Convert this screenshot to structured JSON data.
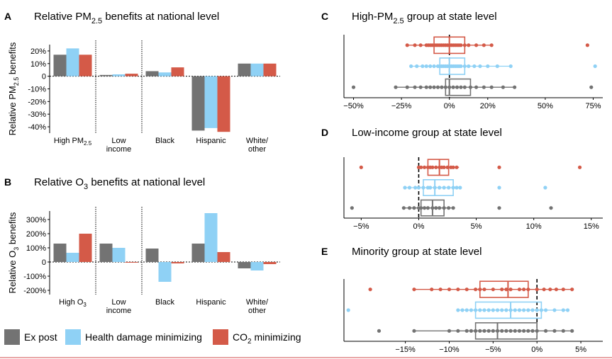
{
  "colors": {
    "ex_post": "#737373",
    "health": "#8fd1f5",
    "co2": "#d45a48"
  },
  "legend": [
    {
      "key": "ex_post",
      "label": "Ex post"
    },
    {
      "key": "health",
      "label": "Health damage minimizing"
    },
    {
      "key": "co2",
      "label": "CO2 minimizing",
      "sub": "2",
      "prefix": "CO",
      "suffix": " minimizing"
    }
  ],
  "chart_data": [
    {
      "id": "A",
      "panel_letter": "A",
      "type": "bar",
      "title": "Relative PM2.5 benefits at national level",
      "title_parts": {
        "pre": "Relative PM",
        "sub": "2.5",
        "post": " benefits at national level"
      },
      "ylabel": "Relative PM2.5 benefits",
      "ylabel_parts": {
        "pre": "Relative PM",
        "sub": "2.5",
        "post": " benefits"
      },
      "ylim": [
        -45,
        25
      ],
      "yticks": [
        20,
        10,
        0,
        -10,
        -20,
        -30,
        -40
      ],
      "ytick_labels": [
        "20%",
        "10%",
        "0",
        "-10%",
        "-20%",
        "-30%",
        "-40%"
      ],
      "categories": [
        "High PM2.5",
        "Low income",
        "Black",
        "Hispanic",
        "White/ other"
      ],
      "category_labels": [
        [
          "High PM2.5"
        ],
        [
          "Low",
          "income"
        ],
        [
          "Black"
        ],
        [
          "Hispanic"
        ],
        [
          "White/",
          "other"
        ]
      ],
      "series": [
        {
          "key": "ex_post",
          "values": [
            17,
            1,
            4,
            -43,
            10
          ]
        },
        {
          "key": "health",
          "values": [
            22,
            1.5,
            3,
            -41,
            10
          ]
        },
        {
          "key": "co2",
          "values": [
            17,
            2,
            7,
            -44,
            10
          ]
        }
      ],
      "separators_after": [
        0,
        1
      ],
      "zero_line": "dotted"
    },
    {
      "id": "B",
      "panel_letter": "B",
      "type": "bar",
      "title": "Relative O3 benefits at national level",
      "title_parts": {
        "pre": "Relative O",
        "sub": "3",
        "post": " benefits at national level"
      },
      "ylabel": "Relative O3 benefits",
      "ylabel_parts": {
        "pre": "Relative O",
        "sub": "3",
        "post": " benefits"
      },
      "ylim": [
        -230,
        360
      ],
      "yticks": [
        300,
        200,
        100,
        0,
        -100,
        -200
      ],
      "ytick_labels": [
        "300%",
        "200%",
        "100%",
        "0",
        "-100%",
        "-200%"
      ],
      "categories": [
        "High O3",
        "Low income",
        "Black",
        "Hispanic",
        "White/ other"
      ],
      "category_labels": [
        [
          "High O3"
        ],
        [
          "Low",
          "income"
        ],
        [
          "Black"
        ],
        [
          "Hispanic"
        ],
        [
          "White/",
          "other"
        ]
      ],
      "series": [
        {
          "key": "ex_post",
          "values": [
            130,
            130,
            95,
            130,
            -45
          ]
        },
        {
          "key": "health",
          "values": [
            65,
            100,
            -140,
            345,
            -60
          ]
        },
        {
          "key": "co2",
          "values": [
            200,
            -5,
            -10,
            70,
            -15
          ]
        }
      ],
      "separators_after": [
        0,
        1
      ],
      "zero_line": "dotted"
    },
    {
      "id": "C",
      "panel_letter": "C",
      "type": "scatter",
      "title": "High-PM2.5 group at state level",
      "title_parts": {
        "pre": "High-PM",
        "sub": "2.5",
        "post": " group at state level"
      },
      "xlim": [
        -55,
        80
      ],
      "xticks": [
        -50,
        -25,
        0,
        20,
        50,
        75
      ],
      "xtick_labels": [
        "−50%",
        "−25%",
        "0%",
        "20%",
        "50%",
        "75%"
      ],
      "series": [
        {
          "key": "co2",
          "box": {
            "q1": -8,
            "median": 0,
            "q3": 8,
            "wlo": -22,
            "whi": 22
          },
          "points": [
            -22,
            -18,
            -15,
            -12,
            -11,
            -10,
            -9,
            -8,
            -7,
            -6,
            -5,
            -4,
            -3,
            -2,
            -1,
            0,
            1,
            2,
            3,
            4,
            5,
            6,
            8,
            10,
            14,
            18,
            22,
            72
          ]
        },
        {
          "key": "health",
          "box": {
            "q1": -5,
            "median": 0,
            "q3": 8,
            "wlo": -20,
            "whi": 32
          },
          "points": [
            -20,
            -17,
            -14,
            -12,
            -10,
            -8,
            -6,
            -5,
            -4,
            -3,
            -2,
            -1,
            0,
            1,
            2,
            3,
            4,
            5,
            6,
            8,
            10,
            13,
            16,
            20,
            25,
            32,
            76
          ]
        },
        {
          "key": "ex_post",
          "box": {
            "q1": -2,
            "median": 0,
            "q3": 11,
            "wlo": -28,
            "whi": 34
          },
          "points": [
            -50,
            -28,
            -22,
            -18,
            -15,
            -12,
            -10,
            -8,
            -6,
            -4,
            -2,
            0,
            2,
            4,
            6,
            8,
            11,
            14,
            18,
            22,
            28,
            34,
            74
          ]
        }
      ],
      "ref_line": 0
    },
    {
      "id": "D",
      "panel_letter": "D",
      "type": "scatter",
      "title": "Low-income group at state level",
      "xlim": [
        -6.5,
        16
      ],
      "xticks": [
        -5,
        0,
        5,
        10,
        15
      ],
      "xtick_labels": [
        "−5%",
        "0%",
        "5%",
        "10%",
        "15%"
      ],
      "series": [
        {
          "key": "co2",
          "box": {
            "q1": 0.8,
            "median": 1.8,
            "q3": 2.6,
            "wlo": 0,
            "whi": 3.5
          },
          "points": [
            -5,
            0,
            0.2,
            0.5,
            0.8,
            1,
            1.2,
            1.5,
            1.8,
            2,
            2.2,
            2.5,
            2.8,
            3,
            3.3,
            7,
            14
          ]
        },
        {
          "key": "health",
          "box": {
            "q1": 0.4,
            "median": 1.4,
            "q3": 3,
            "wlo": -1.2,
            "whi": 3.6
          },
          "points": [
            -1.2,
            -0.8,
            -0.3,
            0,
            0.4,
            0.8,
            1,
            1.4,
            1.8,
            2.2,
            2.6,
            3,
            3.3,
            3.6,
            7,
            11
          ]
        },
        {
          "key": "ex_post",
          "box": {
            "q1": 0.2,
            "median": 1.2,
            "q3": 2.2,
            "wlo": -1.3,
            "whi": 3
          },
          "points": [
            -5.8,
            -1.3,
            -0.8,
            -0.4,
            0,
            0.2,
            0.5,
            0.8,
            1.2,
            1.5,
            1.8,
            2.2,
            2.6,
            3,
            7,
            11.5
          ]
        }
      ],
      "ref_line": 0
    },
    {
      "id": "E",
      "panel_letter": "E",
      "type": "scatter",
      "title": "Minority group at state level",
      "xlim": [
        -22,
        7.5
      ],
      "xticks": [
        -15,
        -10,
        -5,
        0,
        5
      ],
      "xtick_labels": [
        "−15%",
        "−10%",
        "−5%",
        "0%",
        "5%"
      ],
      "series": [
        {
          "key": "co2",
          "box": {
            "q1": -6.5,
            "median": -3.3,
            "q3": -1,
            "wlo": -14,
            "whi": 4
          },
          "points": [
            -19,
            -14,
            -12,
            -11,
            -10,
            -9,
            -8,
            -7,
            -6.5,
            -6,
            -5,
            -4,
            -3.5,
            -3,
            -2,
            -1.5,
            -1,
            0,
            0.8,
            1.5,
            2.2,
            3,
            4
          ]
        },
        {
          "key": "health",
          "box": {
            "q1": -7,
            "median": -3,
            "q3": 0.5,
            "wlo": -9,
            "whi": 3.5
          },
          "points": [
            -21.5,
            -9,
            -8.5,
            -8,
            -7.5,
            -7,
            -6.5,
            -6,
            -5.5,
            -5,
            -4.5,
            -4,
            -3.5,
            -3,
            -2.5,
            -2,
            -1.5,
            -1,
            -0.5,
            0,
            0.5,
            1,
            2,
            3,
            3.5
          ]
        },
        {
          "key": "ex_post",
          "box": {
            "q1": -7,
            "median": -4.5,
            "q3": 0,
            "wlo": -14,
            "whi": 4
          },
          "points": [
            -18,
            -14,
            -10,
            -9,
            -8,
            -7.5,
            -7,
            -6.5,
            -6,
            -5.5,
            -5,
            -4.5,
            -4,
            -3.5,
            -3,
            -2.5,
            -2,
            -1.5,
            -1,
            -0.5,
            0,
            1,
            2,
            3,
            4
          ]
        }
      ],
      "ref_line": 0
    }
  ]
}
